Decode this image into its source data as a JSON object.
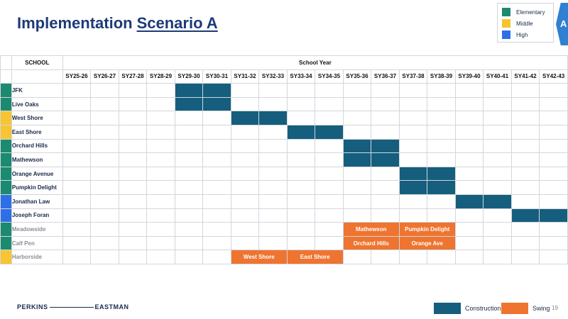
{
  "header": {
    "title_prefix": "Implementation",
    "title_underlined": "Scenario A",
    "tab_letter": "A"
  },
  "level_legend": [
    {
      "label": "Elementary",
      "color": "#1b8a70"
    },
    {
      "label": "Middle",
      "color": "#f7c531"
    },
    {
      "label": "High",
      "color": "#2f6fe6"
    }
  ],
  "table": {
    "school_header": "SCHOOL",
    "year_header": "School Year",
    "years": [
      "SY25-26",
      "SY26-27",
      "SY27-28",
      "SY28-29",
      "SY29-30",
      "SY30-31",
      "SY31-32",
      "SY32-33",
      "SY33-34",
      "SY34-35",
      "SY35-36",
      "SY36-37",
      "SY37-38",
      "SY38-39",
      "SY39-40",
      "SY40-41",
      "SY41-42",
      "SY42-43"
    ],
    "rows": [
      {
        "school": "JFK",
        "level": "Elementary",
        "construction": [
          4,
          5
        ]
      },
      {
        "school": "Live Oaks",
        "level": "Elementary",
        "construction": [
          4,
          5
        ]
      },
      {
        "school": "West Shore",
        "level": "Middle",
        "construction": [
          6,
          7
        ]
      },
      {
        "school": "East Shore",
        "level": "Middle",
        "construction": [
          8,
          9
        ]
      },
      {
        "school": "Orchard Hills",
        "level": "Elementary",
        "construction": [
          10,
          11
        ]
      },
      {
        "school": "Mathewson",
        "level": "Elementary",
        "construction": [
          10,
          11
        ]
      },
      {
        "school": "Orange Avenue",
        "level": "Elementary",
        "construction": [
          12,
          13
        ]
      },
      {
        "school": "Pumpkin Delight",
        "level": "Elementary",
        "construction": [
          12,
          13
        ]
      },
      {
        "school": "Jonathan Law",
        "level": "High",
        "construction": [
          14,
          15
        ]
      },
      {
        "school": "Joseph Foran",
        "level": "High",
        "construction": [
          16,
          17
        ]
      },
      {
        "school": "Meadowside",
        "level": "Elementary",
        "swing": [
          {
            "start": 10,
            "span": 2,
            "label": "Mathewson"
          },
          {
            "start": 12,
            "span": 2,
            "label": "Pumpkin Delight"
          }
        ]
      },
      {
        "school": "Calf Pen",
        "level": "Elementary",
        "swing": [
          {
            "start": 10,
            "span": 2,
            "label": "Orchard Hills"
          },
          {
            "start": 12,
            "span": 2,
            "label": "Orange Ave"
          }
        ]
      },
      {
        "school": "Harborside",
        "level": "Middle",
        "swing": [
          {
            "start": 6,
            "span": 2,
            "label": "West Shore"
          },
          {
            "start": 8,
            "span": 2,
            "label": "East Shore"
          }
        ]
      }
    ]
  },
  "footer": {
    "brand_left": "PERKINS",
    "brand_right": "EASTMAN",
    "construction_label": "Construction",
    "swing_label": "Swing",
    "construction_color": "#155e7d",
    "swing_color": "#ee7430",
    "page_number": "19"
  }
}
